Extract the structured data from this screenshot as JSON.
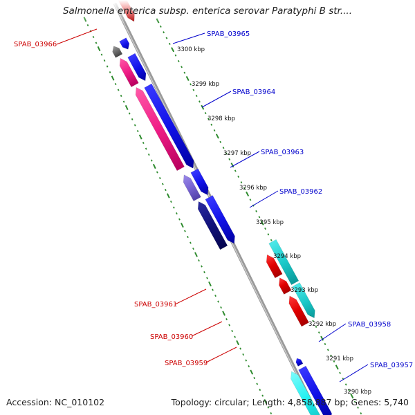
{
  "title": "Salmonella enterica subsp. enterica serovar Paratyphi B str....",
  "accession": "Accession: NC_010102",
  "summary": "Topology: circular; Length: 4,858,887 bp; Genes: 5,740",
  "colors": {
    "backbone": "#8a8a8a",
    "tick": "#2e8b2e",
    "label_forward": "#cc0000",
    "label_reverse": "#0000cc"
  },
  "scale_labels": [
    "3300 kbp",
    "3299 kbp",
    "3298 kbp",
    "3297 kbp",
    "3296 kbp",
    "3295 kbp",
    "3294 kbp",
    "3293 kbp",
    "3292 kbp",
    "3291 kbp",
    "3290 kbp"
  ],
  "gene_labels": [
    {
      "name": "SPAB_03966",
      "color": "#cc0000"
    },
    {
      "name": "SPAB_03965",
      "color": "#0000cc"
    },
    {
      "name": "SPAB_03964",
      "color": "#0000cc"
    },
    {
      "name": "SPAB_03963",
      "color": "#0000cc"
    },
    {
      "name": "SPAB_03962",
      "color": "#0000cc"
    },
    {
      "name": "SPAB_03961",
      "color": "#cc0000"
    },
    {
      "name": "SPAB_03960",
      "color": "#cc0000"
    },
    {
      "name": "SPAB_03959",
      "color": "#cc0000"
    },
    {
      "name": "SPAB_03958",
      "color": "#0000cc"
    },
    {
      "name": "SPAB_03957",
      "color": "#0000cc"
    }
  ]
}
